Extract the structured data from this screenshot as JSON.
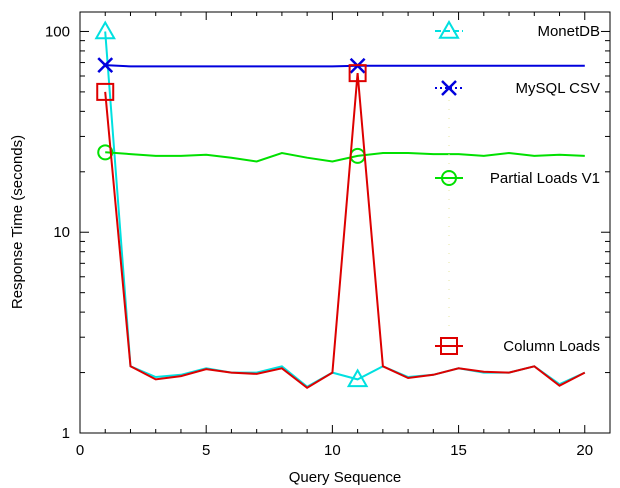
{
  "chart_data": {
    "type": "line",
    "xlabel": "Query Sequence",
    "ylabel": "Response Time (seconds)",
    "xlim": [
      0,
      21
    ],
    "ylim": [
      1,
      125
    ],
    "yscale": "log",
    "grid": false,
    "legend_placement": "right",
    "x_ticks": [
      0,
      5,
      10,
      15,
      20
    ],
    "y_ticks": [
      1,
      10,
      100
    ],
    "x": [
      1,
      2,
      3,
      4,
      5,
      6,
      7,
      8,
      9,
      10,
      11,
      12,
      13,
      14,
      15,
      16,
      17,
      18,
      19,
      20
    ],
    "series": [
      {
        "name": "MonetDB",
        "color": "#00e0e0",
        "marker": "triangle",
        "marker_points": [
          1,
          11
        ],
        "values": [
          100,
          2.15,
          1.9,
          1.95,
          2.1,
          2.0,
          2.0,
          2.15,
          1.7,
          2.0,
          1.85,
          2.15,
          1.9,
          1.95,
          2.1,
          2.0,
          2.0,
          2.15,
          1.75,
          2.0
        ]
      },
      {
        "name": "MySQL CSV",
        "color": "#0000dd",
        "marker": "x",
        "marker_points": [
          1,
          11
        ],
        "values": [
          68,
          67,
          67,
          67,
          67,
          67,
          67,
          67,
          67,
          67,
          67.5,
          67.5,
          67.5,
          67.5,
          67.5,
          67.5,
          67.5,
          67.5,
          67.5,
          67.5
        ]
      },
      {
        "name": "Partial Loads V1",
        "color": "#00e000",
        "marker": "circle",
        "marker_points": [
          1,
          11
        ],
        "values": [
          25,
          24.5,
          24,
          24,
          24.3,
          23.5,
          22.5,
          24.8,
          23.5,
          22.5,
          24,
          24.8,
          24.8,
          24.5,
          24.5,
          24,
          24.8,
          24,
          24.3,
          24
        ]
      },
      {
        "name": "Column Loads",
        "color": "#dd0000",
        "marker": "square",
        "marker_points": [
          1,
          11
        ],
        "values": [
          50,
          2.15,
          1.85,
          1.92,
          2.08,
          2.0,
          1.97,
          2.1,
          1.68,
          2.0,
          62,
          2.15,
          1.88,
          1.95,
          2.1,
          2.02,
          2.0,
          2.15,
          1.72,
          2.0
        ]
      }
    ]
  }
}
